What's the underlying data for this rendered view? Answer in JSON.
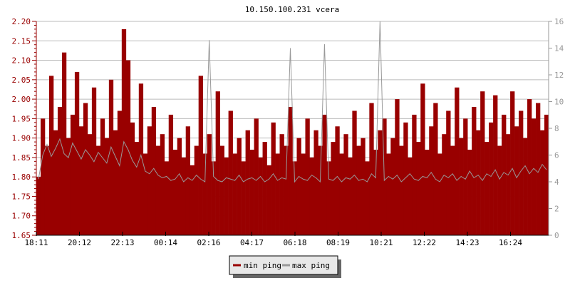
{
  "chart_data": {
    "type": "area",
    "title": "10.150.100.231 vcera",
    "x_tick_labels": [
      "18:11",
      "20:12",
      "22:13",
      "00:14",
      "02:16",
      "04:17",
      "06:18",
      "08:19",
      "10:21",
      "12:22",
      "14:23",
      "16:24"
    ],
    "y_left": {
      "range": [
        1.65,
        2.2
      ],
      "ticks": [
        "1.65",
        "1.70",
        "1.75",
        "1.80",
        "1.85",
        "1.90",
        "1.95",
        "2.00",
        "2.05",
        "2.10",
        "2.15",
        "2.20"
      ]
    },
    "y_right": {
      "range": [
        0,
        16
      ],
      "ticks": [
        "0",
        "2",
        "4",
        "6",
        "8",
        "10",
        "12",
        "14",
        "16"
      ]
    },
    "grid": true,
    "legend": {
      "position": "bottom",
      "entries": [
        "min ping",
        "max ping"
      ]
    },
    "colors": {
      "min_ping": "#990000",
      "max_ping": "#999999",
      "axis_left": "#990000",
      "axis_right": "#999999"
    },
    "series": [
      {
        "name": "min ping",
        "axis": "left",
        "values": [
          1.8,
          1.95,
          1.88,
          2.06,
          1.92,
          1.98,
          2.12,
          1.9,
          1.96,
          2.07,
          1.93,
          1.99,
          1.91,
          2.03,
          1.88,
          1.95,
          1.9,
          2.05,
          1.92,
          1.97,
          2.18,
          2.1,
          1.94,
          1.89,
          2.04,
          1.86,
          1.93,
          1.98,
          1.88,
          1.91,
          1.84,
          1.96,
          1.87,
          1.9,
          1.85,
          1.93,
          1.83,
          1.88,
          2.06,
          1.86,
          1.91,
          1.84,
          2.02,
          1.88,
          1.85,
          1.97,
          1.86,
          1.9,
          1.84,
          1.92,
          1.87,
          1.95,
          1.85,
          1.89,
          1.83,
          1.94,
          1.86,
          1.91,
          1.88,
          1.98,
          1.84,
          1.9,
          1.86,
          1.95,
          1.85,
          1.92,
          1.88,
          1.96,
          1.84,
          1.89,
          1.93,
          1.86,
          1.91,
          1.85,
          1.97,
          1.88,
          1.9,
          1.84,
          1.99,
          1.87,
          1.92,
          1.95,
          1.86,
          1.9,
          2.0,
          1.88,
          1.94,
          1.85,
          1.96,
          1.89,
          2.04,
          1.87,
          1.93,
          1.99,
          1.86,
          1.91,
          1.97,
          1.88,
          2.03,
          1.9,
          1.95,
          1.87,
          1.98,
          1.92,
          2.02,
          1.89,
          1.94,
          2.01,
          1.88,
          1.96,
          1.91,
          2.02,
          1.93,
          1.97,
          1.9,
          2.0,
          1.95,
          1.99,
          1.92,
          1.96
        ]
      },
      {
        "name": "max ping",
        "axis": "right",
        "values": [
          4.2,
          6.0,
          6.8,
          5.9,
          6.5,
          7.2,
          6.1,
          5.8,
          6.9,
          6.3,
          5.7,
          6.4,
          6.0,
          5.5,
          6.2,
          5.8,
          5.4,
          6.6,
          5.9,
          5.2,
          7.0,
          6.4,
          5.6,
          5.1,
          6.0,
          4.8,
          4.6,
          5.0,
          4.5,
          4.3,
          4.4,
          4.1,
          4.2,
          4.6,
          4.0,
          4.3,
          4.1,
          4.5,
          4.2,
          4.0,
          14.6,
          4.4,
          4.1,
          4.0,
          4.3,
          4.2,
          4.1,
          4.5,
          4.0,
          4.2,
          4.3,
          4.1,
          4.4,
          4.0,
          4.2,
          4.6,
          4.1,
          4.3,
          4.2,
          14.0,
          4.0,
          4.4,
          4.2,
          4.1,
          4.5,
          4.3,
          4.0,
          14.3,
          4.2,
          4.1,
          4.4,
          4.0,
          4.3,
          4.2,
          4.5,
          4.1,
          4.2,
          4.0,
          4.6,
          4.3,
          16.0,
          4.1,
          4.4,
          4.2,
          4.5,
          4.0,
          4.3,
          4.6,
          4.2,
          4.1,
          4.4,
          4.3,
          4.7,
          4.2,
          4.0,
          4.5,
          4.3,
          4.6,
          4.1,
          4.4,
          4.2,
          4.8,
          4.3,
          4.5,
          4.1,
          4.6,
          4.4,
          4.9,
          4.2,
          4.7,
          4.5,
          5.0,
          4.3,
          4.8,
          5.2,
          4.6,
          5.0,
          4.7,
          5.3,
          4.9
        ]
      }
    ]
  }
}
